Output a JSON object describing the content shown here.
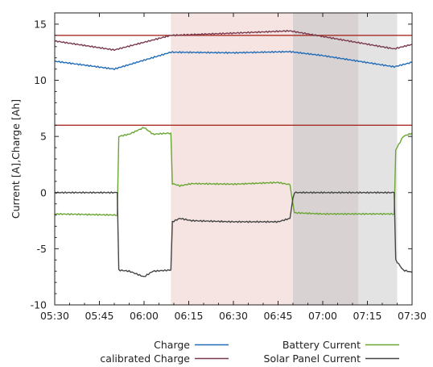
{
  "chart_data": {
    "type": "line",
    "title": "",
    "ylabel": "Current [A],Charge [Ah]",
    "xlabel": "",
    "ylim": [
      -10,
      16
    ],
    "xlim": [
      "05:30",
      "07:30"
    ],
    "yticks": [
      -10,
      -5,
      0,
      5,
      10,
      15
    ],
    "ytick_labels": [
      "-10",
      "-5",
      "0",
      "5",
      "10",
      "15"
    ],
    "xticks": [
      "05:30",
      "05:45",
      "06:00",
      "06:15",
      "06:30",
      "06:45",
      "07:00",
      "07:15",
      "07:30"
    ],
    "grid": false,
    "legend_position": "bottom",
    "shaded_regions": [
      {
        "start": "06:09",
        "end": "06:50",
        "color": "#f5e4e1"
      },
      {
        "start": "06:50",
        "end": "07:12",
        "color": "#d9d2d2"
      },
      {
        "start": "07:12",
        "end": "07:25",
        "color": "#e3e3e3"
      }
    ],
    "reference_lines": [
      {
        "y": 14.0,
        "color": "#a01a10"
      },
      {
        "y": 6.0,
        "color": "#a01a10"
      }
    ],
    "series": [
      {
        "name": "Charge",
        "color": "#1f6bb8",
        "x": [
          "05:30",
          "05:50",
          "06:09",
          "06:30",
          "06:49",
          "07:00",
          "07:24",
          "07:30"
        ],
        "y": [
          11.7,
          11.0,
          12.5,
          12.45,
          12.55,
          12.2,
          11.2,
          11.6
        ]
      },
      {
        "name": "calibrated Charge",
        "color": "#7a3a4e",
        "x": [
          "05:30",
          "05:50",
          "06:09",
          "06:30",
          "06:49",
          "07:00",
          "07:24",
          "07:30"
        ],
        "y": [
          13.5,
          12.7,
          14.0,
          14.2,
          14.4,
          13.9,
          12.8,
          13.2
        ]
      },
      {
        "name": "Battery Current",
        "color": "#6aa634",
        "x": [
          "05:30",
          "05:51",
          "05:51.5",
          "05:55",
          "06:00",
          "06:03",
          "06:09",
          "06:09.5",
          "06:12",
          "06:16",
          "06:30",
          "06:45",
          "06:49",
          "06:50",
          "06:50.5",
          "07:00",
          "07:24",
          "07:24.5",
          "07:27",
          "07:30"
        ],
        "y": [
          -1.9,
          -2.0,
          5.0,
          5.2,
          5.8,
          5.2,
          5.3,
          0.8,
          0.6,
          0.8,
          0.75,
          0.9,
          0.7,
          -1.0,
          -1.8,
          -1.9,
          -1.9,
          3.8,
          5.0,
          5.3
        ]
      },
      {
        "name": "Solar Panel Current",
        "color": "#444444",
        "x": [
          "05:30",
          "05:51",
          "05:51.5",
          "05:55",
          "06:00",
          "06:03",
          "06:09",
          "06:09.5",
          "06:12",
          "06:16",
          "06:30",
          "06:45",
          "06:49",
          "06:50",
          "06:50.5",
          "07:00",
          "07:24",
          "07:24.5",
          "07:27",
          "07:30"
        ],
        "y": [
          0.0,
          0.0,
          -6.9,
          -7.0,
          -7.5,
          -7.0,
          -6.9,
          -2.6,
          -2.3,
          -2.5,
          -2.6,
          -2.6,
          -2.3,
          -0.5,
          0.0,
          0.0,
          0.0,
          -6.0,
          -6.9,
          -7.1
        ]
      }
    ],
    "legend": [
      {
        "label": "Charge",
        "series": 0
      },
      {
        "label": "calibrated Charge",
        "series": 1
      },
      {
        "label": "Battery Current",
        "series": 2
      },
      {
        "label": "Solar Panel Current",
        "series": 3
      }
    ]
  }
}
